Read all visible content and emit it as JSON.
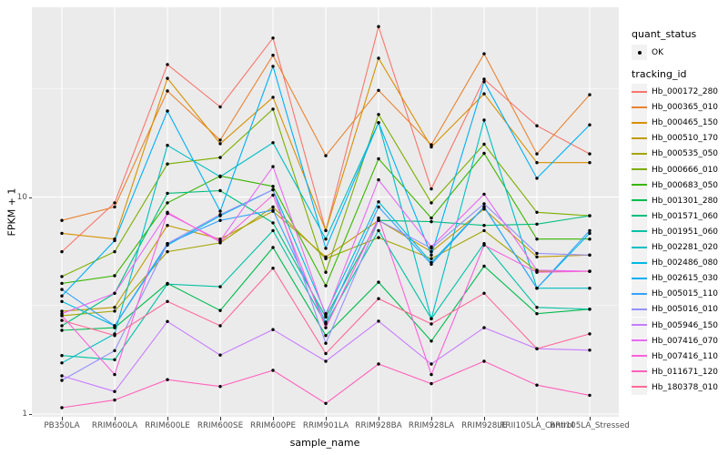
{
  "figure": {
    "x_axis_title": "sample_name",
    "y_axis_title": "FPKM + 1"
  },
  "legend": {
    "quant_status_title": "quant_status",
    "quant_status_items": [
      {
        "label": "OK",
        "marker": "point",
        "marker_color": "#000000"
      }
    ],
    "tracking_id_title": "tracking_id"
  },
  "chart_data": {
    "type": "line",
    "title": "",
    "xlabel": "sample_name",
    "ylabel": "FPKM + 1",
    "y_scale": "log10",
    "y_ticks": [
      1,
      10
    ],
    "y_domain": [
      1,
      75
    ],
    "grid": "on",
    "panel_bg": "#EBEBEB",
    "grid_color": "#FFFFFF",
    "point_color": "#000000",
    "axis_text_color": "#4d4d4d",
    "legend_position": "right",
    "categories": [
      "PB350LA",
      "RRIM600LA",
      "RRIM600LE",
      "RRIM600SE",
      "RRIM600PE",
      "RRIM901LA",
      "RRIM928BA",
      "RRIM928LA",
      "RRIM928LE",
      "RRII105LA_Control",
      "RRII105LA_Stressed"
    ],
    "series": [
      {
        "name": "Hb_000172_280",
        "color": "#F8766D",
        "values": [
          5.6,
          9.4,
          40.8,
          26.0,
          54.0,
          7.0,
          61.0,
          10.9,
          34.9,
          21.3,
          15.8
        ]
      },
      {
        "name": "Hb_000365_010",
        "color": "#EA8331",
        "values": [
          7.8,
          9.0,
          30.8,
          18.3,
          45.0,
          15.5,
          31.0,
          17.4,
          45.7,
          15.8,
          29.6
        ]
      },
      {
        "name": "Hb_000465_150",
        "color": "#D89000",
        "values": [
          6.8,
          6.4,
          35.2,
          17.6,
          28.8,
          7.0,
          43.6,
          17.0,
          29.9,
          14.4,
          14.4
        ]
      },
      {
        "name": "Hb_000510_170",
        "color": "#C09B00",
        "values": [
          2.98,
          3.1,
          7.4,
          6.4,
          8.6,
          5.3,
          7.8,
          5.6,
          8.8,
          5.3,
          5.4
        ]
      },
      {
        "name": "Hb_000535_050",
        "color": "#A3A500",
        "values": [
          2.84,
          2.98,
          5.6,
          6.15,
          9.0,
          5.2,
          6.5,
          5.2,
          7.0,
          4.55,
          4.55
        ]
      },
      {
        "name": "Hb_000666_010",
        "color": "#7CAE00",
        "values": [
          4.3,
          5.6,
          14.2,
          15.2,
          25.4,
          4.5,
          24.0,
          9.4,
          17.5,
          8.5,
          8.2
        ]
      },
      {
        "name": "Hb_000683_050",
        "color": "#39B600",
        "values": [
          4.0,
          4.34,
          9.4,
          12.5,
          11.2,
          3.9,
          15.0,
          8.0,
          15.9,
          6.4,
          6.4
        ]
      },
      {
        "name": "Hb_001301_280",
        "color": "#00BB4E",
        "values": [
          2.43,
          2.5,
          4.0,
          3.0,
          5.85,
          2.3,
          4.05,
          2.17,
          4.8,
          2.9,
          3.04
        ]
      },
      {
        "name": "Hb_001571_060",
        "color": "#00BF7D",
        "values": [
          2.55,
          3.6,
          10.4,
          10.7,
          7.6,
          2.8,
          7.8,
          7.7,
          7.4,
          7.5,
          8.2
        ]
      },
      {
        "name": "Hb_001951_060",
        "color": "#00C1A3",
        "values": [
          1.86,
          1.78,
          3.97,
          3.86,
          7.0,
          2.6,
          7.0,
          2.75,
          6.1,
          3.1,
          3.04
        ]
      },
      {
        "name": "Hb_002281_020",
        "color": "#00BFC4",
        "values": [
          1.72,
          2.34,
          17.3,
          12.4,
          17.8,
          6.4,
          22.0,
          2.75,
          22.6,
          3.8,
          3.8
        ]
      },
      {
        "name": "Hb_002486_080",
        "color": "#00BAE0",
        "values": [
          3.3,
          2.55,
          6.0,
          8.2,
          10.8,
          2.9,
          9.5,
          5.0,
          9.0,
          3.8,
          6.8
        ]
      },
      {
        "name": "Hb_002615_030",
        "color": "#00B0F6",
        "values": [
          3.5,
          6.3,
          24.9,
          8.6,
          40.0,
          5.8,
          22.0,
          5.4,
          34.0,
          12.2,
          21.5
        ]
      },
      {
        "name": "Hb_005015_110",
        "color": "#35A2FF",
        "values": [
          3.75,
          2.55,
          6.1,
          7.8,
          8.7,
          2.65,
          9.0,
          4.9,
          9.0,
          3.8,
          7.0
        ]
      },
      {
        "name": "Hb_005016_010",
        "color": "#9590FF",
        "values": [
          1.43,
          1.96,
          6.1,
          8.3,
          10.8,
          2.12,
          7.8,
          5.8,
          9.3,
          5.5,
          5.4
        ]
      },
      {
        "name": "Hb_005946_150",
        "color": "#C77CFF",
        "values": [
          1.5,
          1.27,
          2.67,
          1.87,
          2.45,
          1.75,
          2.68,
          1.7,
          2.5,
          2.0,
          1.97
        ]
      },
      {
        "name": "Hb_007416_070",
        "color": "#E76BF3",
        "values": [
          2.9,
          3.6,
          8.4,
          6.3,
          13.8,
          2.84,
          12.0,
          5.9,
          10.3,
          4.6,
          4.55
        ]
      },
      {
        "name": "Hb_007416_110",
        "color": "#FA62DB",
        "values": [
          2.84,
          1.52,
          8.5,
          6.2,
          10.2,
          2.5,
          8.0,
          1.52,
          6.0,
          4.5,
          4.55
        ]
      },
      {
        "name": "Hb_011671_120",
        "color": "#FF62BC",
        "values": [
          1.07,
          1.16,
          1.44,
          1.34,
          1.59,
          1.12,
          1.7,
          1.38,
          1.75,
          1.36,
          1.22
        ]
      },
      {
        "name": "Hb_180378_010",
        "color": "#FF6A98",
        "values": [
          2.7,
          2.3,
          3.3,
          2.55,
          4.7,
          1.9,
          3.4,
          2.6,
          3.6,
          2.0,
          2.34
        ]
      }
    ]
  }
}
